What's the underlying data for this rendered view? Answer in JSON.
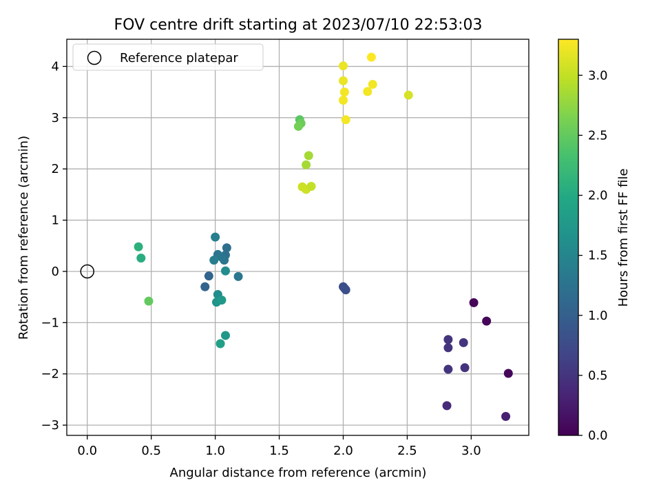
{
  "chart_data": {
    "type": "scatter",
    "title": "FOV centre drift starting at 2023/07/10 22:53:03",
    "xlabel": "Angular distance from reference (arcmin)",
    "ylabel": "Rotation from reference (arcmin)",
    "xlim": [
      -0.16,
      3.45
    ],
    "ylim": [
      -3.2,
      4.53
    ],
    "xticks": [
      0.0,
      0.5,
      1.0,
      1.5,
      2.0,
      2.5,
      3.0
    ],
    "xtick_labels": [
      "0.0",
      "0.5",
      "1.0",
      "1.5",
      "2.0",
      "2.5",
      "3.0"
    ],
    "yticks": [
      -3,
      -2,
      -1,
      0,
      1,
      2,
      3,
      4
    ],
    "ytick_labels": [
      "−3",
      "−2",
      "−1",
      "0",
      "1",
      "2",
      "3",
      "4"
    ],
    "grid": true,
    "legend": {
      "placement": "upper-left",
      "entries": [
        {
          "label": "Reference platepar",
          "marker": "open-circle"
        }
      ]
    },
    "reference_point": {
      "x": 0.0,
      "y": 0.0
    },
    "colorbar": {
      "label": "Hours from first FF file",
      "colormap": "viridis",
      "range": [
        0.0,
        3.3
      ],
      "ticks": [
        0.0,
        0.5,
        1.0,
        1.5,
        2.0,
        2.5,
        3.0
      ],
      "tick_labels": [
        "0.0",
        "0.5",
        "1.0",
        "1.5",
        "2.0",
        "2.5",
        "3.0"
      ]
    },
    "points": [
      {
        "x": 3.02,
        "y": -0.61,
        "c": 0.05
      },
      {
        "x": 3.12,
        "y": -0.97,
        "c": 0.05
      },
      {
        "x": 3.29,
        "y": -1.99,
        "c": 0.05
      },
      {
        "x": 3.27,
        "y": -2.83,
        "c": 0.3
      },
      {
        "x": 2.81,
        "y": -2.62,
        "c": 0.4
      },
      {
        "x": 2.82,
        "y": -1.33,
        "c": 0.5
      },
      {
        "x": 2.82,
        "y": -1.49,
        "c": 0.5
      },
      {
        "x": 2.82,
        "y": -1.91,
        "c": 0.5
      },
      {
        "x": 2.94,
        "y": -1.39,
        "c": 0.5
      },
      {
        "x": 2.95,
        "y": -1.88,
        "c": 0.5
      },
      {
        "x": 2.0,
        "y": -0.3,
        "c": 0.8
      },
      {
        "x": 2.01,
        "y": -0.33,
        "c": 0.8
      },
      {
        "x": 2.02,
        "y": -0.36,
        "c": 0.8
      },
      {
        "x": 0.95,
        "y": -0.09,
        "c": 1.05
      },
      {
        "x": 0.92,
        "y": -0.3,
        "c": 1.05
      },
      {
        "x": 1.18,
        "y": -0.1,
        "c": 1.3
      },
      {
        "x": 1.09,
        "y": 0.46,
        "c": 1.2
      },
      {
        "x": 1.08,
        "y": 0.32,
        "c": 1.2
      },
      {
        "x": 1.05,
        "y": 0.28,
        "c": 1.25
      },
      {
        "x": 1.07,
        "y": 0.22,
        "c": 1.3
      },
      {
        "x": 1.02,
        "y": 0.33,
        "c": 1.3
      },
      {
        "x": 0.99,
        "y": 0.22,
        "c": 1.4
      },
      {
        "x": 1.0,
        "y": 0.67,
        "c": 1.4
      },
      {
        "x": 1.08,
        "y": 0.01,
        "c": 1.6
      },
      {
        "x": 1.02,
        "y": -0.45,
        "c": 1.6
      },
      {
        "x": 1.01,
        "y": -0.6,
        "c": 1.7
      },
      {
        "x": 1.05,
        "y": -0.56,
        "c": 1.75
      },
      {
        "x": 1.08,
        "y": -1.25,
        "c": 1.75
      },
      {
        "x": 1.04,
        "y": -1.41,
        "c": 1.85
      },
      {
        "x": 0.4,
        "y": 0.48,
        "c": 2.1
      },
      {
        "x": 0.42,
        "y": 0.26,
        "c": 2.05
      },
      {
        "x": 0.48,
        "y": -0.58,
        "c": 2.5
      },
      {
        "x": 1.66,
        "y": 2.96,
        "c": 2.45
      },
      {
        "x": 1.67,
        "y": 2.89,
        "c": 2.55
      },
      {
        "x": 1.65,
        "y": 2.83,
        "c": 2.6
      },
      {
        "x": 1.73,
        "y": 2.26,
        "c": 2.85
      },
      {
        "x": 1.71,
        "y": 2.08,
        "c": 2.85
      },
      {
        "x": 1.68,
        "y": 1.65,
        "c": 3.05
      },
      {
        "x": 1.71,
        "y": 1.6,
        "c": 3.05
      },
      {
        "x": 1.75,
        "y": 1.66,
        "c": 3.0
      },
      {
        "x": 2.0,
        "y": 4.01,
        "c": 3.2
      },
      {
        "x": 2.0,
        "y": 3.72,
        "c": 3.2
      },
      {
        "x": 2.01,
        "y": 3.5,
        "c": 3.25
      },
      {
        "x": 2.0,
        "y": 3.34,
        "c": 3.25
      },
      {
        "x": 2.02,
        "y": 2.96,
        "c": 3.25
      },
      {
        "x": 2.22,
        "y": 4.18,
        "c": 3.3
      },
      {
        "x": 2.23,
        "y": 3.65,
        "c": 3.25
      },
      {
        "x": 2.19,
        "y": 3.51,
        "c": 3.25
      },
      {
        "x": 2.51,
        "y": 3.44,
        "c": 3.1
      }
    ]
  }
}
